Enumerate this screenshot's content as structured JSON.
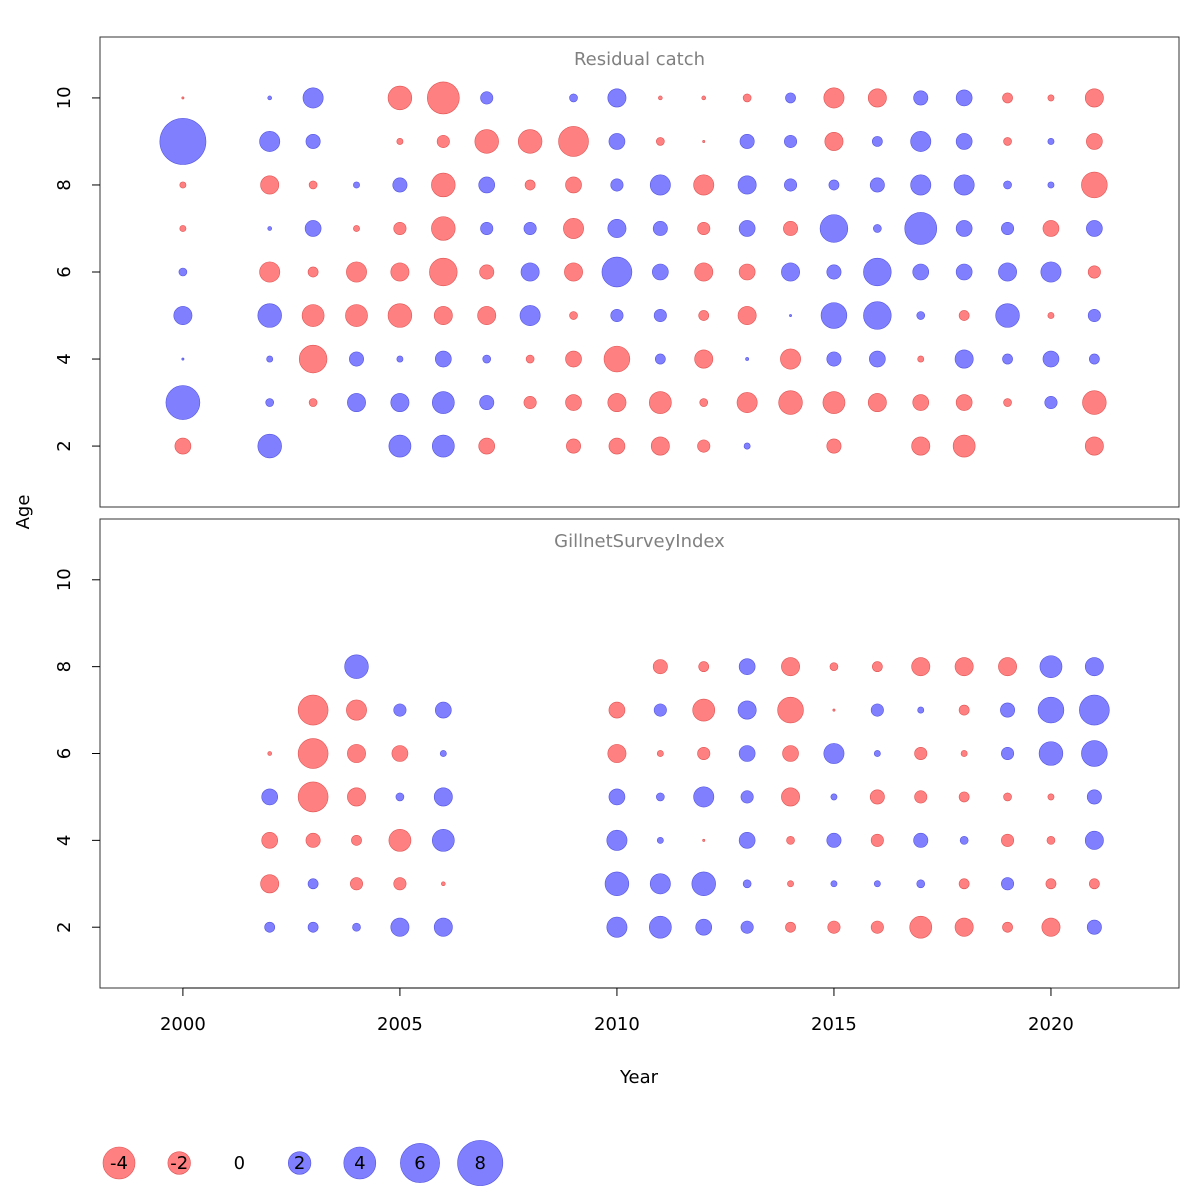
{
  "axes": {
    "xlabel": "Year",
    "ylabel": "Age",
    "xlim": [
      1998.09,
      2022.95
    ],
    "xticks": [
      2000,
      2005,
      2010,
      2015,
      2020
    ],
    "ylim": [
      0.6,
      11.4
    ],
    "yticks": [
      2,
      4,
      6,
      8,
      10
    ]
  },
  "colors": {
    "positive": "#8080ff",
    "negative": "#ff8080",
    "positive_text": "#00008b",
    "negative_text": "#8b0000",
    "zero_text": "#000000"
  },
  "legend": {
    "values": [
      -4,
      -2,
      0,
      2,
      4,
      6,
      8
    ]
  },
  "chart_data": [
    {
      "type": "bubble",
      "title": "Residual catch",
      "x": [
        2000,
        2002,
        2003,
        2004,
        2005,
        2006,
        2007,
        2008,
        2009,
        2010,
        2011,
        2012,
        2013,
        2014,
        2015,
        2016,
        2017,
        2018,
        2019,
        2020,
        2021
      ],
      "ages": [
        2,
        3,
        4,
        5,
        6,
        7,
        8,
        9,
        10
      ],
      "values": [
        [
          -1,
          2.2,
          null,
          null,
          1.9,
          1.9,
          -1,
          null,
          -0.8,
          -1,
          -1.3,
          -0.6,
          0.15,
          null,
          -0.8,
          null,
          -1.3,
          -1.9,
          null,
          null,
          -1.3
        ],
        [
          4.5,
          0.25,
          -0.25,
          1.3,
          1.3,
          1.9,
          0.8,
          -0.6,
          -1,
          -1.3,
          -1.9,
          -0.25,
          -1.6,
          -2.2,
          -1.9,
          -1.3,
          -1,
          -1,
          -0.25,
          0.6,
          -2.2
        ],
        [
          0.02,
          0.15,
          -3,
          0.8,
          0.15,
          1,
          0.25,
          -0.25,
          -1,
          -2.6,
          0.4,
          -1.3,
          0.04,
          -1.6,
          0.8,
          1,
          -0.15,
          1.3,
          0.4,
          1,
          0.4
        ],
        [
          1.3,
          2.2,
          -1.9,
          -1.9,
          -2.2,
          -1.3,
          -1.3,
          1.6,
          -0.25,
          0.6,
          0.6,
          -0.4,
          -1.3,
          0.02,
          2.6,
          3,
          0.25,
          -0.4,
          2.2,
          -0.15,
          0.6
        ],
        [
          0.25,
          -1.6,
          -0.4,
          -1.6,
          -1.3,
          -3,
          -0.8,
          1.3,
          -1.3,
          3.5,
          1,
          -1.3,
          -1,
          1.3,
          0.8,
          3,
          1,
          1,
          1.3,
          1.6,
          -0.6
        ],
        [
          -0.15,
          0.06,
          1,
          -0.15,
          -0.6,
          -2.2,
          0.6,
          0.6,
          -1.6,
          1.3,
          0.8,
          -0.6,
          1,
          -0.8,
          3,
          0.25,
          4,
          1,
          0.6,
          -1,
          1
        ],
        [
          -0.15,
          -1.3,
          -0.25,
          0.15,
          0.8,
          -2.2,
          1,
          -0.4,
          -1,
          0.6,
          1.6,
          -1.6,
          1.3,
          0.6,
          0.4,
          0.8,
          1.6,
          1.6,
          0.25,
          0.15,
          -2.6
        ],
        [
          8.3,
          1.6,
          0.8,
          null,
          -0.15,
          -0.6,
          -2.2,
          -2.2,
          -3.5,
          1,
          -0.25,
          -0.02,
          0.8,
          0.6,
          -1.3,
          0.4,
          1.6,
          1,
          -0.25,
          0.15,
          -1
        ],
        [
          -0.02,
          0.06,
          1.6,
          null,
          -2.2,
          -4,
          0.6,
          null,
          0.25,
          1.3,
          -0.06,
          -0.06,
          -0.25,
          0.4,
          -1.6,
          -1.3,
          0.8,
          1,
          -0.4,
          -0.15,
          -1.3
        ]
      ]
    },
    {
      "type": "bubble",
      "title": "GillnetSurveyIndex",
      "x": [
        2002,
        2003,
        2004,
        2005,
        2006,
        2010,
        2011,
        2012,
        2013,
        2014,
        2015,
        2016,
        2017,
        2018,
        2019,
        2020,
        2021
      ],
      "ages": [
        2,
        3,
        4,
        5,
        6,
        7,
        8
      ],
      "values": [
        [
          0.4,
          0.4,
          0.25,
          1.3,
          1.3,
          1.6,
          1.9,
          1,
          0.6,
          -0.4,
          -0.6,
          -0.6,
          -1.9,
          -1.3,
          -0.4,
          -1.3,
          0.8
        ],
        [
          -1.3,
          0.4,
          -0.6,
          -0.6,
          -0.06,
          2.2,
          1.6,
          2.2,
          0.25,
          -0.15,
          0.15,
          0.15,
          0.25,
          -0.4,
          0.6,
          -0.4,
          -0.4
        ],
        [
          -1,
          -0.8,
          -0.4,
          -1.9,
          1.9,
          1.6,
          0.15,
          -0.02,
          1,
          -0.25,
          0.8,
          -0.6,
          0.8,
          0.25,
          -0.6,
          -0.25,
          1.3
        ],
        [
          1,
          -3.5,
          -1.3,
          0.25,
          1.3,
          1,
          0.25,
          1.6,
          0.6,
          -1.3,
          0.15,
          -0.8,
          -0.6,
          -0.4,
          -0.25,
          -0.15,
          0.8
        ],
        [
          -0.06,
          -3.5,
          -1.3,
          -1,
          0.15,
          -1.3,
          -0.15,
          -0.6,
          1,
          -1,
          1.6,
          0.15,
          -0.6,
          -0.15,
          0.6,
          2.2,
          2.6
        ],
        [
          null,
          -3.5,
          -1.6,
          0.6,
          1,
          -1,
          0.6,
          -1.9,
          1.3,
          -2.6,
          -0.02,
          0.6,
          0.15,
          -0.4,
          0.8,
          2.6,
          3.5
        ],
        [
          null,
          null,
          2.2,
          null,
          null,
          null,
          -0.8,
          -0.4,
          1,
          -1.3,
          -0.25,
          -0.4,
          -1.3,
          -1.3,
          -1.3,
          1.9,
          1.3
        ]
      ]
    }
  ]
}
